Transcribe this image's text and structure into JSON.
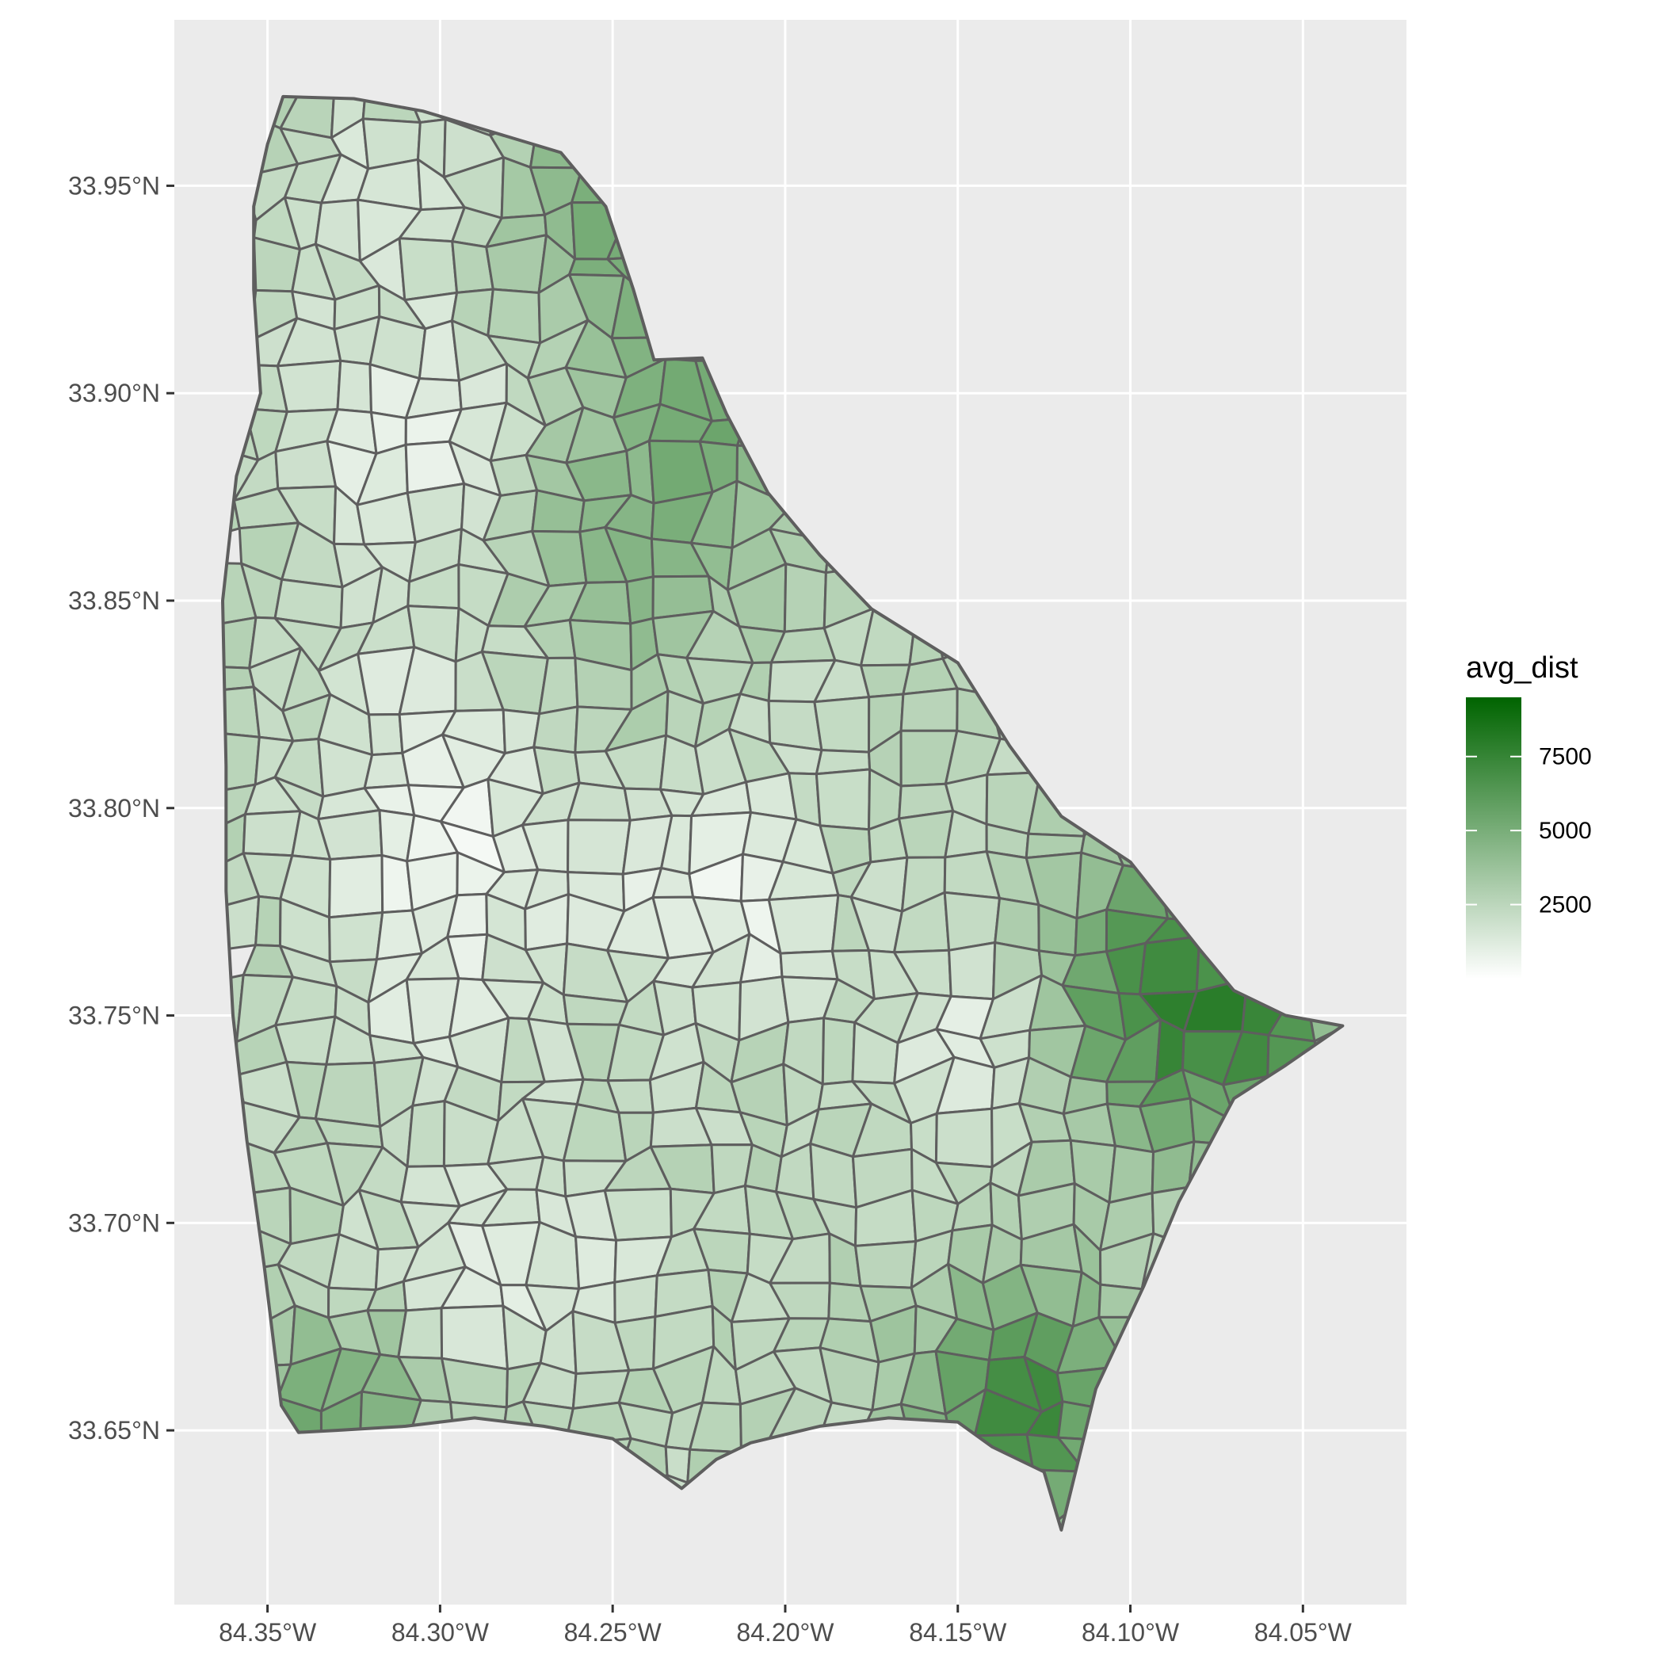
{
  "map": {
    "type": "choropleth",
    "fill_variable": "avg_dist",
    "x_axis": {
      "range": [
        -84.377,
        -84.02
      ],
      "ticks": [
        -84.35,
        -84.3,
        -84.25,
        -84.2,
        -84.15,
        -84.1,
        -84.05
      ],
      "tick_labels": [
        "84.35°W",
        "84.30°W",
        "84.25°W",
        "84.20°W",
        "84.15°W",
        "84.10°W",
        "84.05°W"
      ]
    },
    "y_axis": {
      "range": [
        33.608,
        33.99
      ],
      "ticks": [
        33.65,
        33.7,
        33.75,
        33.8,
        33.85,
        33.9,
        33.95
      ],
      "tick_labels": [
        "33.65°N",
        "33.70°N",
        "33.75°N",
        "33.80°N",
        "33.85°N",
        "33.90°N",
        "33.95°N"
      ]
    },
    "grid": true,
    "colors": {
      "panel_background": "#ebebeb",
      "grid_line": "#ffffff",
      "region_border": "#5e5e5e",
      "scale_low": "#ffffff",
      "scale_high": "#006400"
    },
    "legend": {
      "title": "avg_dist",
      "position": "right",
      "min": 0,
      "max": 9500,
      "breaks": [
        2500,
        5000,
        7500
      ],
      "break_labels": [
        "2500",
        "5000",
        "7500"
      ]
    }
  }
}
